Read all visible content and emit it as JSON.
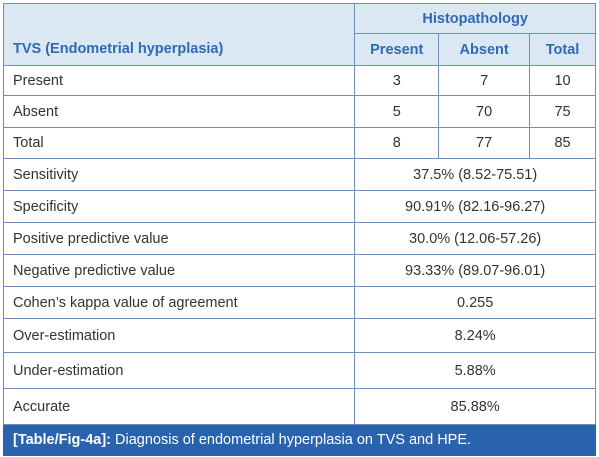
{
  "table": {
    "header": {
      "group": "Histopathology",
      "row_label": "TVS (Endometrial hyperplasia)",
      "columns": [
        "Present",
        "Absent",
        "Total"
      ]
    },
    "rows": [
      {
        "label": "Present",
        "cells": [
          "3",
          "7",
          "10"
        ]
      },
      {
        "label": "Absent",
        "cells": [
          "5",
          "70",
          "75"
        ]
      },
      {
        "label": "Total",
        "cells": [
          "8",
          "77",
          "85"
        ]
      },
      {
        "label": "Sensitivity",
        "value": "37.5% (8.52-75.51)"
      },
      {
        "label": "Specificity",
        "value": "90.91% (82.16-96.27)"
      },
      {
        "label": "Positive predictive value",
        "value": "30.0% (12.06-57.26)"
      },
      {
        "label": "Negative predictive value",
        "value": "93.33% (89.07-96.01)"
      },
      {
        "label": "Cohen’s kappa value of agreement",
        "value": "0.255"
      },
      {
        "label": "Over-estimation",
        "value": "8.24%"
      },
      {
        "label": "Under-estimation",
        "value": "5.88%"
      },
      {
        "label": "Accurate",
        "value": "85.88%"
      }
    ],
    "caption": {
      "label": "[Table/Fig-4a]:",
      "text": "Diagnosis of endometrial hyperplasia on TVS and HPE."
    }
  }
}
